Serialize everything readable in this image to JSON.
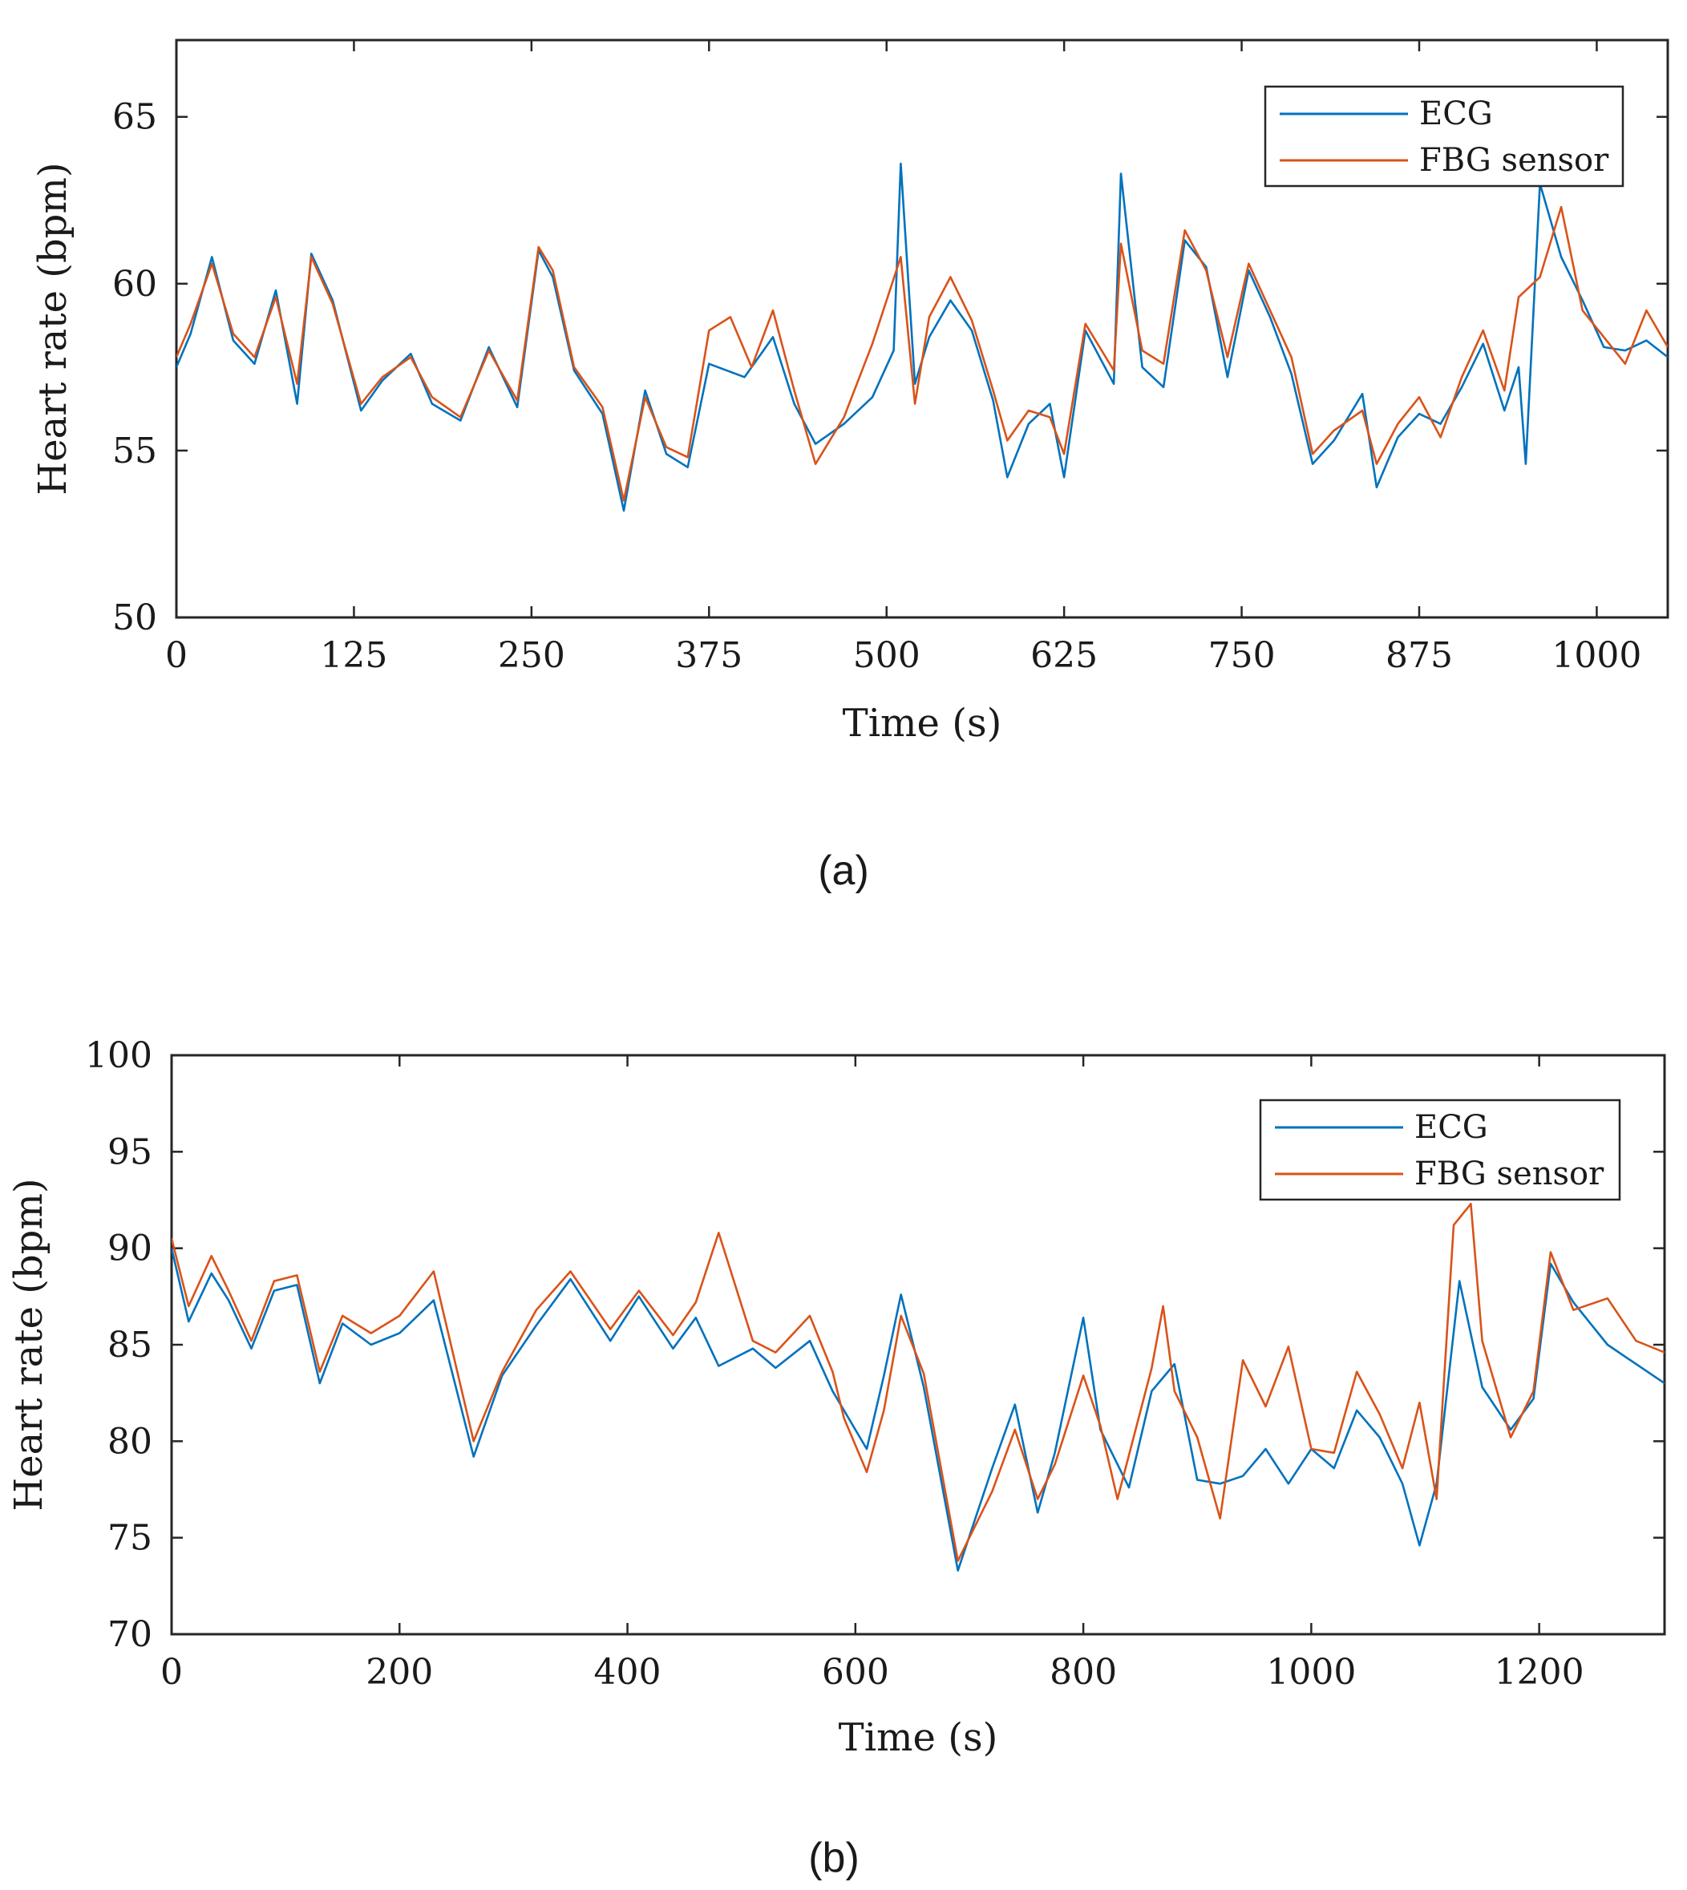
{
  "colors": {
    "ecg": "#0072BD",
    "fbg": "#D95319",
    "axis": "#262626",
    "text": "#1a1a1a"
  },
  "chart_data": [
    {
      "type": "line",
      "caption": "(a)",
      "xlabel": "Time (s)",
      "ylabel": "Heart rate (bpm)",
      "xlim": [
        0,
        1050
      ],
      "ylim": [
        50,
        67.3
      ],
      "xticks": [
        0,
        125,
        250,
        375,
        500,
        625,
        750,
        875,
        1000
      ],
      "xtick_labels": [
        "0",
        "125",
        "250",
        "375",
        "500",
        "625",
        "750",
        "875",
        "1000"
      ],
      "yticks": [
        50,
        55,
        60,
        65
      ],
      "ytick_labels": [
        "50",
        "55",
        "60",
        "65"
      ],
      "grid": false,
      "legend_position": "top-right",
      "series": [
        {
          "name": "ECG",
          "color": "#0072BD",
          "x": [
            0,
            10,
            25,
            40,
            55,
            70,
            85,
            95,
            110,
            130,
            145,
            165,
            180,
            200,
            220,
            240,
            255,
            265,
            280,
            300,
            315,
            330,
            345,
            360,
            375,
            400,
            420,
            435,
            450,
            470,
            490,
            505,
            510,
            520,
            530,
            545,
            560,
            575,
            585,
            600,
            615,
            625,
            640,
            660,
            665,
            680,
            695,
            710,
            725,
            740,
            755,
            770,
            785,
            800,
            815,
            835,
            845,
            860,
            875,
            890,
            905,
            920,
            935,
            945,
            950,
            960,
            975,
            990,
            1005,
            1020,
            1035,
            1050
          ],
          "y": [
            57.5,
            58.5,
            60.8,
            58.3,
            57.6,
            59.8,
            56.4,
            60.9,
            59.5,
            56.2,
            57.1,
            57.9,
            56.4,
            55.9,
            58.1,
            56.3,
            61.0,
            60.2,
            57.4,
            56.1,
            53.2,
            56.8,
            54.9,
            54.5,
            57.6,
            57.2,
            58.4,
            56.4,
            55.2,
            55.8,
            56.6,
            58.0,
            63.6,
            57.0,
            58.4,
            59.5,
            58.6,
            56.5,
            54.2,
            55.8,
            56.4,
            54.2,
            58.6,
            57.0,
            63.3,
            57.5,
            56.9,
            61.3,
            60.5,
            57.2,
            60.4,
            59.0,
            57.3,
            54.6,
            55.3,
            56.7,
            53.9,
            55.4,
            56.1,
            55.8,
            56.9,
            58.2,
            56.2,
            57.5,
            54.6,
            63.0,
            60.8,
            59.5,
            58.1,
            58.0,
            58.3,
            57.8
          ]
        },
        {
          "name": "FBG sensor",
          "color": "#D95319",
          "x": [
            0,
            10,
            25,
            40,
            55,
            70,
            85,
            95,
            110,
            130,
            145,
            165,
            180,
            200,
            220,
            240,
            255,
            265,
            280,
            300,
            315,
            330,
            345,
            360,
            375,
            390,
            405,
            420,
            435,
            450,
            470,
            490,
            500,
            510,
            520,
            530,
            545,
            560,
            575,
            585,
            600,
            615,
            625,
            640,
            660,
            665,
            680,
            695,
            710,
            725,
            740,
            755,
            770,
            785,
            800,
            815,
            835,
            845,
            860,
            875,
            890,
            905,
            920,
            935,
            945,
            960,
            975,
            990,
            1005,
            1020,
            1035,
            1050
          ],
          "y": [
            57.8,
            58.8,
            60.6,
            58.5,
            57.8,
            59.6,
            57.0,
            60.8,
            59.4,
            56.4,
            57.2,
            57.8,
            56.6,
            56.0,
            58.0,
            56.5,
            61.1,
            60.4,
            57.5,
            56.3,
            53.5,
            56.6,
            55.1,
            54.8,
            58.6,
            59.0,
            57.5,
            59.2,
            56.8,
            54.6,
            56.0,
            58.2,
            59.5,
            60.8,
            56.4,
            59.0,
            60.2,
            58.9,
            56.8,
            55.3,
            56.2,
            56.0,
            54.9,
            58.8,
            57.4,
            61.2,
            58.0,
            57.6,
            61.6,
            60.4,
            57.8,
            60.6,
            59.2,
            57.8,
            54.9,
            55.6,
            56.2,
            54.6,
            55.8,
            56.6,
            55.4,
            57.2,
            58.6,
            56.8,
            59.6,
            60.2,
            62.3,
            59.2,
            58.4,
            57.6,
            59.2,
            58.1
          ]
        }
      ]
    },
    {
      "type": "line",
      "caption": "(b)",
      "xlabel": "Time (s)",
      "ylabel": "Heart rate (bpm)",
      "xlim": [
        0,
        1310
      ],
      "ylim": [
        70,
        100
      ],
      "xticks": [
        0,
        200,
        400,
        600,
        800,
        1000,
        1200
      ],
      "xtick_labels": [
        "0",
        "200",
        "400",
        "600",
        "800",
        "1000",
        "1200"
      ],
      "yticks": [
        70,
        75,
        80,
        85,
        90,
        95,
        100
      ],
      "ytick_labels": [
        "70",
        "75",
        "80",
        "85",
        "90",
        "95",
        "100"
      ],
      "grid": false,
      "legend_position": "top-right",
      "series": [
        {
          "name": "ECG",
          "color": "#0072BD",
          "x": [
            0,
            15,
            35,
            50,
            70,
            90,
            110,
            130,
            150,
            175,
            200,
            230,
            265,
            290,
            320,
            350,
            385,
            410,
            440,
            460,
            480,
            510,
            530,
            560,
            580,
            610,
            625,
            640,
            660,
            690,
            720,
            740,
            760,
            775,
            800,
            815,
            840,
            860,
            880,
            900,
            920,
            940,
            960,
            980,
            1000,
            1020,
            1040,
            1060,
            1080,
            1095,
            1110,
            1130,
            1150,
            1175,
            1195,
            1210,
            1230,
            1260,
            1285,
            1310
          ],
          "y": [
            90.0,
            86.2,
            88.7,
            87.3,
            84.8,
            87.8,
            88.1,
            83.0,
            86.1,
            85.0,
            85.6,
            87.3,
            79.2,
            83.4,
            86.0,
            88.4,
            85.2,
            87.5,
            84.8,
            86.4,
            83.9,
            84.8,
            83.8,
            85.2,
            82.6,
            79.6,
            83.4,
            87.6,
            82.8,
            73.3,
            78.6,
            81.9,
            76.3,
            79.4,
            86.4,
            80.6,
            77.6,
            82.6,
            84.0,
            78.0,
            77.8,
            78.2,
            79.6,
            77.8,
            79.6,
            78.6,
            81.6,
            80.2,
            77.8,
            74.6,
            77.8,
            88.3,
            82.8,
            80.6,
            82.2,
            89.2,
            87.2,
            85.0,
            84.0,
            83.0
          ]
        },
        {
          "name": "FBG sensor",
          "color": "#D95319",
          "x": [
            0,
            15,
            35,
            50,
            70,
            90,
            110,
            130,
            150,
            175,
            200,
            230,
            265,
            290,
            320,
            350,
            385,
            410,
            440,
            460,
            480,
            510,
            530,
            560,
            580,
            590,
            610,
            625,
            640,
            660,
            690,
            720,
            740,
            760,
            775,
            800,
            815,
            830,
            860,
            870,
            880,
            900,
            920,
            940,
            960,
            980,
            1000,
            1020,
            1040,
            1060,
            1080,
            1095,
            1110,
            1125,
            1140,
            1150,
            1175,
            1195,
            1210,
            1230,
            1260,
            1285,
            1310
          ],
          "y": [
            90.5,
            87.0,
            89.6,
            87.8,
            85.2,
            88.3,
            88.6,
            83.6,
            86.5,
            85.6,
            86.5,
            88.8,
            80.0,
            83.6,
            86.8,
            88.8,
            85.8,
            87.8,
            85.5,
            87.2,
            90.8,
            85.2,
            84.6,
            86.5,
            83.6,
            81.2,
            78.4,
            81.6,
            86.5,
            83.5,
            73.8,
            77.4,
            80.6,
            77.0,
            78.8,
            83.4,
            80.8,
            77.0,
            83.8,
            87.0,
            82.6,
            80.2,
            76.0,
            84.2,
            81.8,
            84.9,
            79.6,
            79.4,
            83.6,
            81.4,
            78.6,
            82.0,
            77.0,
            91.2,
            92.3,
            85.2,
            80.2,
            82.6,
            89.8,
            86.8,
            87.4,
            85.2,
            84.6
          ]
        }
      ]
    }
  ]
}
